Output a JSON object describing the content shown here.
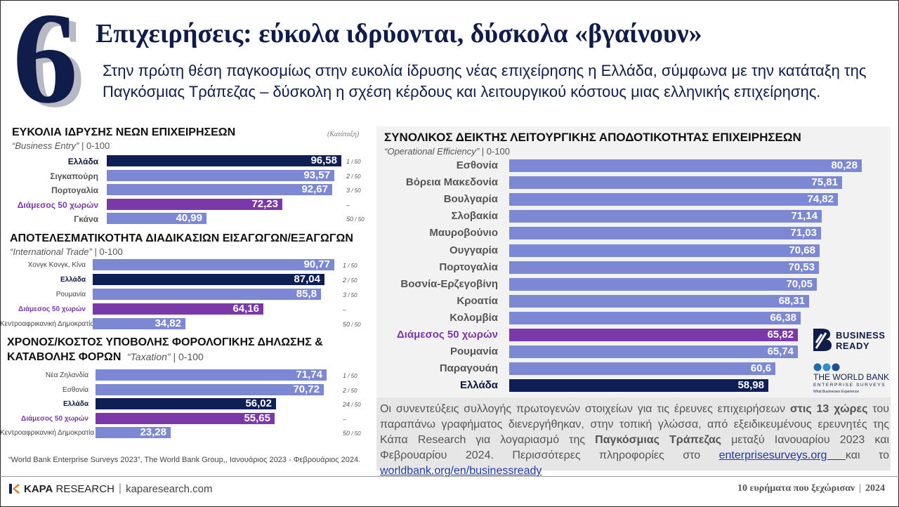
{
  "header": {
    "number": "6",
    "title": "Επιχειρήσεις: εύκολα ιδρύονται, δύσκολα «βγαίνουν»",
    "subtitle": "Στην πρώτη θέση παγκοσμίως στην ευκολία ίδρυσης νέας επιχείρησης η Ελλάδα, σύμφωνα με την κατάταξη της Παγκόσμιας Τράπεζας – δύσκολη η σχέση κέρδους και λειτουργικού κόστους μιας ελληνικής επιχείρησης."
  },
  "colors": {
    "navy": "#0f1f56",
    "periwinkle": "#7d88d4",
    "purple": "#7a38a8",
    "bg_panel": "#f2f2f2"
  },
  "ranking_note": "(Κατάταξη)",
  "chart_data": [
    {
      "type": "bar",
      "title": "ΕΥΚΟΛΙΑ ΙΔΡΥΣΗΣ ΝΕΩΝ ΕΠΙΧΕΙΡΗΣΕΩΝ",
      "subtitle_italic": "“Business Entry”",
      "subtitle_plain": " | 0-100",
      "categories": [
        "Ελλάδα",
        "Σιγκαπούρη",
        "Πορτογαλία",
        "Διάμεσος 50 χωρών",
        "Γκάνα"
      ],
      "values": [
        96.58,
        93.57,
        92.67,
        72.23,
        40.99
      ],
      "labels": [
        "96,58",
        "93,57",
        "92,67",
        "72,23",
        "40,99"
      ],
      "ranks": [
        "1",
        "2",
        "3",
        "–",
        "50"
      ],
      "rank_suffix": " / 50",
      "highlight": [
        "navy",
        "normal",
        "normal",
        "purple",
        "normal"
      ],
      "xlim": [
        0,
        100
      ]
    },
    {
      "type": "bar",
      "title": "ΑΠΟΤΕΛΕΣΜΑΤΙΚΟΤΗΤΑ ΔΙΑΔΙΚΑΣΙΩΝ ΕΙΣΑΓΩΓΩΝ/ΕΞΑΓΩΓΩΝ",
      "subtitle_italic": "“International Trade”",
      "subtitle_plain": " | 0-100",
      "categories": [
        "Χονγκ Κονγκ, Κίνα",
        "Ελλάδα",
        "Ρουμανία",
        "Διάμεσος 50 χωρών",
        "Κεντροαφρικανική Δημοκρατία"
      ],
      "values": [
        90.77,
        87.04,
        85.8,
        64.16,
        34.82
      ],
      "labels": [
        "90,77",
        "87,04",
        "85,8",
        "64,16",
        "34,82"
      ],
      "ranks": [
        "1",
        "2",
        "3",
        "–",
        "50"
      ],
      "rank_suffix": " / 50",
      "highlight": [
        "normal",
        "navy",
        "normal",
        "purple",
        "normal"
      ],
      "xlim": [
        0,
        100
      ]
    },
    {
      "type": "bar",
      "title": "ΧΡΟΝΟΣ/ΚΟΣΤΟΣ ΥΠΟΒΟΛΗΣ ΦΟΡΟΛΟΓΙΚΗΣ ΔΗΛΩΣΗΣ &",
      "title_line2": "ΚΑΤΑΒΟΛΗΣ ΦΟΡΩΝ",
      "subtitle_italic": "“Taxation”",
      "subtitle_plain": " | 0-100",
      "categories": [
        "Νέα Ζηλανδία",
        "Εσθονία",
        "Ελλάδα",
        "Διάμεσος 50 χωρών",
        "Κεντροαφρικανική Δημοκρατία"
      ],
      "values": [
        71.74,
        70.72,
        56.02,
        55.65,
        23.28
      ],
      "labels": [
        "71,74",
        "70,72",
        "56,02",
        "55,65",
        "23,28"
      ],
      "ranks": [
        "1",
        "2",
        "24",
        "–",
        "50"
      ],
      "rank_suffix": " / 50",
      "highlight": [
        "normal",
        "normal",
        "navy",
        "purple",
        "normal"
      ],
      "xlim": [
        0,
        100
      ]
    },
    {
      "type": "bar",
      "title": "ΣΥΝΟΛΙΚΟΣ ΔΕΙΚΤΗΣ ΛΕΙΤΟΥΡΓΙΚΗΣ ΑΠΟΔΟΤΙΚΟΤΗΤΑΣ ΕΠΙΧΕΙΡΗΣΕΩΝ",
      "subtitle_italic": "“Operational Efficiency”",
      "subtitle_plain": " | 0-100",
      "categories": [
        "Εσθονία",
        "Βόρεια Μακεδονία",
        "Βουλγαρία",
        "Σλοβακία",
        "Μαυροβούνιο",
        "Ουγγαρία",
        "Πορτογαλία",
        "Βοσνία-Ερζεγοβίνη",
        "Κροατία",
        "Κολομβία",
        "Διάμεσος 50 χωρών",
        "Ρουμανία",
        "Παραγουάη",
        "Ελλάδα"
      ],
      "values": [
        80.28,
        75.81,
        74.82,
        71.14,
        71.03,
        70.68,
        70.53,
        70.05,
        68.31,
        66.38,
        65.82,
        65.74,
        60.6,
        58.98
      ],
      "labels": [
        "80,28",
        "75,81",
        "74,82",
        "71,14",
        "71,03",
        "70,68",
        "70,53",
        "70,05",
        "68,31",
        "66,38",
        "65,82",
        "65,74",
        "60,6",
        "58,98"
      ],
      "highlight": [
        "normal",
        "normal",
        "normal",
        "normal",
        "normal",
        "normal",
        "normal",
        "normal",
        "normal",
        "normal",
        "purple",
        "normal",
        "normal",
        "navy"
      ],
      "xlim": [
        0,
        100
      ]
    }
  ],
  "info": {
    "p1": "Οι συνεντεύξεις συλλογής πρωτογενών στοιχείων για τις έρευνες επιχειρήσεων ",
    "p1_bold": "στις 13 χώρες",
    "p2": " του παραπάνω γραφήματος διενεργήθηκαν, στην τοπική γλώσσα, από εξειδικευμένους ερευνητές της Κάπα Research για λογαριασμό της ",
    "p2_bold": "Παγκόσμιας Τράπεζας",
    "p3": " μεταξύ Ιανουαρίου 2023 και Φεβρουαρίου 2024. Περισσότερες πληροφορίες στο ",
    "link1": "enterprisesurveys.org ",
    "p4": " και το ",
    "link2": "worldbank.org/en/businessready"
  },
  "footnote": "“World Bank Enterprise Surveys 2023”, The World Bank Group,, Ιανουάριος 2023 - Φεβρουάριος 2024.",
  "footer": {
    "kapa_bold": "KAPA",
    "kapa_rest": " RESEARCH",
    "url": "kaparesearch.com",
    "right_text": "10 ευρήματα που ξεχώρισαν",
    "year": "2024"
  },
  "logos": {
    "business_ready_line1": "BUSINESS",
    "business_ready_line2": "READY",
    "wb_title": "THE WORLD BANK",
    "wb_sub": "ENTERPRISE SURVEYS",
    "wb_sub2": "What Businesses Experience"
  }
}
